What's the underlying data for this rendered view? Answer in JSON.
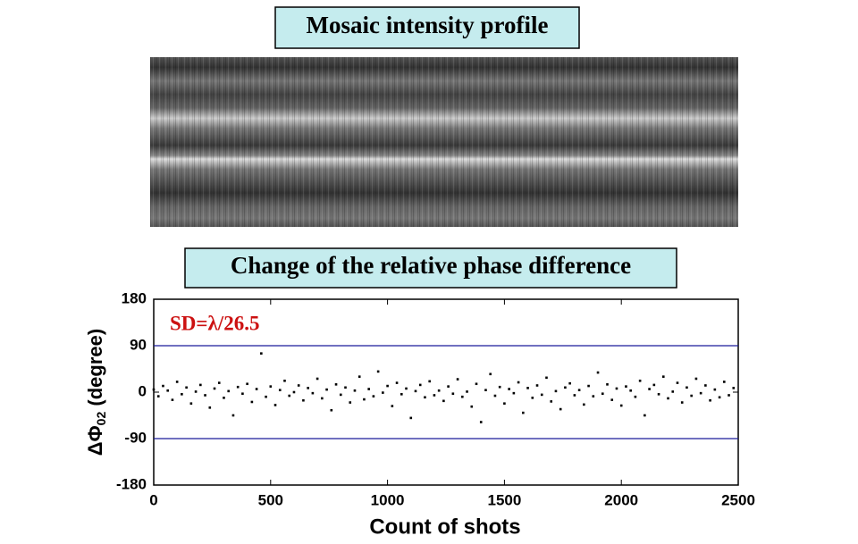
{
  "header": {
    "title": "Mosaic intensity profile"
  },
  "chart_data": {
    "type": "scatter",
    "title": "Change of the relative phase difference",
    "xlabel": "Count of shots",
    "ylabel": [
      "ΔΦ",
      "02",
      " (degree)"
    ],
    "annotation": "SD=λ/26.5",
    "annotation_color": "#cc1111",
    "xlim": [
      0,
      2500
    ],
    "xticks": [
      0,
      500,
      1000,
      1500,
      2000,
      2500
    ],
    "ylim": [
      -180,
      180
    ],
    "yticks": [
      180,
      90,
      0,
      -90,
      -180
    ],
    "reference_lines": [
      90,
      -90
    ],
    "reference_color": "#1a1a9a",
    "series": [
      {
        "color": "#000000",
        "x": [
          0,
          20,
          40,
          60,
          80,
          100,
          120,
          140,
          160,
          180,
          200,
          220,
          240,
          260,
          280,
          300,
          320,
          340,
          360,
          380,
          400,
          420,
          440,
          460,
          480,
          500,
          520,
          540,
          560,
          580,
          600,
          620,
          640,
          660,
          680,
          700,
          720,
          740,
          760,
          780,
          800,
          820,
          840,
          860,
          880,
          900,
          920,
          940,
          960,
          980,
          1000,
          1020,
          1040,
          1060,
          1080,
          1100,
          1120,
          1140,
          1160,
          1180,
          1200,
          1220,
          1240,
          1260,
          1280,
          1300,
          1320,
          1340,
          1360,
          1380,
          1400,
          1420,
          1440,
          1460,
          1480,
          1500,
          1520,
          1540,
          1560,
          1580,
          1600,
          1620,
          1640,
          1660,
          1680,
          1700,
          1720,
          1740,
          1760,
          1780,
          1800,
          1820,
          1840,
          1860,
          1880,
          1900,
          1920,
          1940,
          1960,
          1980,
          2000,
          2020,
          2040,
          2060,
          2080,
          2100,
          2120,
          2140,
          2160,
          2180,
          2200,
          2220,
          2240,
          2260,
          2280,
          2300,
          2320,
          2340,
          2360,
          2380,
          2400,
          2420,
          2440,
          2460,
          2480
        ],
        "values": [
          5,
          -8,
          12,
          3,
          -15,
          20,
          -4,
          9,
          -22,
          1,
          14,
          -6,
          -30,
          7,
          18,
          -11,
          2,
          -45,
          10,
          -3,
          16,
          -19,
          6,
          75,
          -9,
          11,
          -25,
          4,
          22,
          -7,
          0,
          13,
          -16,
          8,
          -2,
          26,
          -12,
          5,
          -35,
          15,
          -5,
          9,
          -20,
          3,
          30,
          -14,
          6,
          -8,
          40,
          -1,
          12,
          -27,
          18,
          -4,
          7,
          -50,
          2,
          14,
          -10,
          21,
          -6,
          3,
          -17,
          11,
          -3,
          25,
          -9,
          1,
          -28,
          16,
          -58,
          4,
          35,
          -7,
          10,
          -22,
          6,
          -2,
          19,
          -40,
          8,
          -11,
          13,
          -5,
          28,
          -18,
          2,
          -33,
          9,
          17,
          -6,
          4,
          -24,
          12,
          -8,
          38,
          -3,
          15,
          -15,
          7,
          -26,
          11,
          3,
          -9,
          22,
          -45,
          6,
          14,
          -4,
          30,
          -12,
          1,
          18,
          -20,
          9,
          -7,
          26,
          -2,
          13,
          -16,
          5,
          -10,
          20,
          -6,
          8
        ]
      }
    ]
  }
}
